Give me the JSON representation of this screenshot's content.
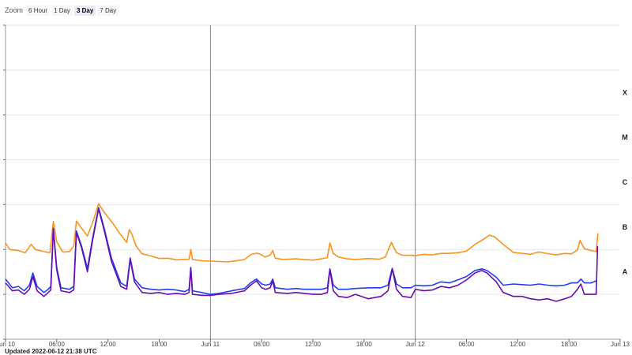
{
  "zoom": {
    "label": "Zoom",
    "buttons": [
      "6 Hour",
      "1 Day",
      "3 Day",
      "7 Day"
    ],
    "selected": "3 Day"
  },
  "updated_text": "Updated 2022-06-12 21:38 UTC",
  "chart_data": {
    "type": "line",
    "x_unit": "hours since Jun 10 00:00 UTC",
    "x_range": [
      0,
      72
    ],
    "x_ticks": [
      {
        "x": 0,
        "label": "Jun 10"
      },
      {
        "x": 6,
        "label": "06:00"
      },
      {
        "x": 12,
        "label": "12:00"
      },
      {
        "x": 18,
        "label": "18:00"
      },
      {
        "x": 24,
        "label": "Jun 11"
      },
      {
        "x": 30,
        "label": "06:00"
      },
      {
        "x": 36,
        "label": "12:00"
      },
      {
        "x": 42,
        "label": "18:00"
      },
      {
        "x": 48,
        "label": "Jun 12"
      },
      {
        "x": 54,
        "label": "06:00"
      },
      {
        "x": 60,
        "label": "12:00"
      },
      {
        "x": 66,
        "label": "18:00"
      },
      {
        "x": 72,
        "label": "Jun 13"
      }
    ],
    "y_scale": "log",
    "y_unit": "W/m²",
    "y_range": [
      1e-09,
      0.01
    ],
    "flare_classes": [
      {
        "label": "X",
        "value": 0.0001
      },
      {
        "label": "M",
        "value": 1e-05
      },
      {
        "label": "C",
        "value": 1e-06
      },
      {
        "label": "B",
        "value": 1e-07
      },
      {
        "label": "A",
        "value": 1e-08
      }
    ],
    "day_lines": [
      24,
      48
    ],
    "series": [
      {
        "color": "#f7941d",
        "points": [
          [
            0,
            1.4e-07
          ],
          [
            0.5,
            1e-07
          ],
          [
            1.5,
            9.5e-08
          ],
          [
            2.3,
            8.5e-08
          ],
          [
            3,
            1.3e-07
          ],
          [
            3.5,
            1e-07
          ],
          [
            4.5,
            9e-08
          ],
          [
            5.2,
            8.5e-08
          ],
          [
            5.6,
            4.2e-07
          ],
          [
            6,
            1.5e-07
          ],
          [
            6.7,
            8.8e-08
          ],
          [
            7.5,
            9e-08
          ],
          [
            8,
            1.2e-07
          ],
          [
            8.3,
            4.3e-07
          ],
          [
            8.8,
            3.2e-07
          ],
          [
            9.6,
            2e-07
          ],
          [
            10.2,
            4e-07
          ],
          [
            10.9,
            1.05e-06
          ],
          [
            11.5,
            7e-07
          ],
          [
            12.5,
            4e-07
          ],
          [
            13.3,
            2.4e-07
          ],
          [
            14.2,
            1.45e-07
          ],
          [
            14.5,
            2.8e-07
          ],
          [
            14.8,
            2.2e-07
          ],
          [
            15.3,
            1.2e-07
          ],
          [
            16,
            8e-08
          ],
          [
            17,
            7.2e-08
          ],
          [
            18,
            6.3e-08
          ],
          [
            19,
            6.4e-08
          ],
          [
            20,
            5.9e-08
          ],
          [
            21.5,
            6.1e-08
          ],
          [
            21.7,
            1e-07
          ],
          [
            21.9,
            6e-08
          ],
          [
            23,
            5.6e-08
          ],
          [
            24,
            5.5e-08
          ],
          [
            25,
            5.4e-08
          ],
          [
            26,
            5.3e-08
          ],
          [
            27,
            5.6e-08
          ],
          [
            28,
            6e-08
          ],
          [
            28.8,
            7.8e-08
          ],
          [
            29.5,
            8.3e-08
          ],
          [
            30,
            7.6e-08
          ],
          [
            30.4,
            6.8e-08
          ],
          [
            31,
            7.5e-08
          ],
          [
            31.3,
            9.5e-08
          ],
          [
            31.6,
            6.4e-08
          ],
          [
            32.5,
            6e-08
          ],
          [
            34,
            6.2e-08
          ],
          [
            35,
            6e-08
          ],
          [
            36,
            5.8e-08
          ],
          [
            37,
            6.2e-08
          ],
          [
            37.7,
            6.6e-08
          ],
          [
            38,
            1.4e-07
          ],
          [
            38.4,
            8.2e-08
          ],
          [
            39,
            6.8e-08
          ],
          [
            40,
            6.2e-08
          ],
          [
            41,
            6e-08
          ],
          [
            42.5,
            6.3e-08
          ],
          [
            43.8,
            6.1e-08
          ],
          [
            44.5,
            6.8e-08
          ],
          [
            45.2,
            1.45e-07
          ],
          [
            45.8,
            8.5e-08
          ],
          [
            46.5,
            7.4e-08
          ],
          [
            47.5,
            7.5e-08
          ],
          [
            48,
            7.3e-08
          ],
          [
            49,
            7.8e-08
          ],
          [
            50,
            7.6e-08
          ],
          [
            51,
            8.2e-08
          ],
          [
            52,
            8.2e-08
          ],
          [
            53,
            8.5e-08
          ],
          [
            54,
            9.2e-08
          ],
          [
            55,
            1.3e-07
          ],
          [
            56,
            1.7e-07
          ],
          [
            56.7,
            2.1e-07
          ],
          [
            57.3,
            1.9e-07
          ],
          [
            58.3,
            1.3e-07
          ],
          [
            59.5,
            8.6e-08
          ],
          [
            60.5,
            8.2e-08
          ],
          [
            61.5,
            7.8e-08
          ],
          [
            62.5,
            8.8e-08
          ],
          [
            63.5,
            8.1e-08
          ],
          [
            64.5,
            7.6e-08
          ],
          [
            65.5,
            8.2e-08
          ],
          [
            66.3,
            8e-08
          ],
          [
            67,
            9.8e-08
          ],
          [
            67.3,
            1.6e-07
          ],
          [
            67.8,
            1.05e-07
          ],
          [
            68.6,
            9.5e-08
          ],
          [
            69.2,
            9e-08
          ],
          [
            69.4,
            2.3e-07
          ]
        ]
      },
      {
        "color": "#1f3ff0",
        "points": [
          [
            0,
            2.2e-08
          ],
          [
            0.8,
            1.4e-08
          ],
          [
            1.5,
            1.5e-08
          ],
          [
            2.2,
            1.2e-08
          ],
          [
            2.8,
            1.6e-08
          ],
          [
            3.2,
            3e-08
          ],
          [
            3.7,
            1.5e-08
          ],
          [
            4.5,
            1.1e-08
          ],
          [
            5,
            1.3e-08
          ],
          [
            5.3,
            1.5e-08
          ],
          [
            5.6,
            3e-07
          ],
          [
            6,
            4e-08
          ],
          [
            6.5,
            1.4e-08
          ],
          [
            7.5,
            1.3e-08
          ],
          [
            8,
            1.5e-08
          ],
          [
            8.3,
            2.6e-07
          ],
          [
            8.9,
            1.2e-07
          ],
          [
            9.6,
            3.8e-08
          ],
          [
            10.2,
            1.8e-07
          ],
          [
            10.9,
            8.6e-07
          ],
          [
            11.6,
            2.8e-07
          ],
          [
            12.4,
            6.5e-08
          ],
          [
            13.5,
            1.8e-08
          ],
          [
            14.2,
            1.5e-08
          ],
          [
            14.6,
            6.5e-08
          ],
          [
            15.1,
            2.2e-08
          ],
          [
            16,
            1.4e-08
          ],
          [
            17,
            1.3e-08
          ],
          [
            18,
            1.25e-08
          ],
          [
            19,
            1.3e-08
          ],
          [
            20,
            1.25e-08
          ],
          [
            21,
            1.15e-08
          ],
          [
            21.5,
            1.3e-08
          ],
          [
            21.7,
            4e-08
          ],
          [
            21.9,
            1.2e-08
          ],
          [
            23,
            1.1e-08
          ],
          [
            24,
            1e-08
          ],
          [
            25,
            1.05e-08
          ],
          [
            26.5,
            1.2e-08
          ],
          [
            28,
            1.35e-08
          ],
          [
            28.7,
            1.8e-08
          ],
          [
            29.4,
            2.2e-08
          ],
          [
            30,
            1.7e-08
          ],
          [
            30.5,
            1.6e-08
          ],
          [
            31,
            1.7e-08
          ],
          [
            31.3,
            2.2e-08
          ],
          [
            31.6,
            1.4e-08
          ],
          [
            33,
            1.3e-08
          ],
          [
            34,
            1.35e-08
          ],
          [
            35,
            1.3e-08
          ],
          [
            36,
            1.3e-08
          ],
          [
            37,
            1.3e-08
          ],
          [
            37.7,
            1.4e-08
          ],
          [
            38,
            3.7e-08
          ],
          [
            38.4,
            1.6e-08
          ],
          [
            39,
            1.3e-08
          ],
          [
            40,
            1.3e-08
          ],
          [
            41,
            1.35e-08
          ],
          [
            42.5,
            1.4e-08
          ],
          [
            44,
            1.4e-08
          ],
          [
            44.8,
            1.6e-08
          ],
          [
            45.3,
            3.8e-08
          ],
          [
            45.8,
            1.7e-08
          ],
          [
            46.5,
            1.4e-08
          ],
          [
            47.5,
            1.4e-08
          ],
          [
            48,
            1.6e-08
          ],
          [
            49,
            1.55e-08
          ],
          [
            50,
            1.6e-08
          ],
          [
            51,
            1.9e-08
          ],
          [
            52,
            1.8e-08
          ],
          [
            53,
            2.1e-08
          ],
          [
            54,
            2.5e-08
          ],
          [
            55,
            3.4e-08
          ],
          [
            55.8,
            3.7e-08
          ],
          [
            56.4,
            3.4e-08
          ],
          [
            57.5,
            2.4e-08
          ],
          [
            58.3,
            1.6e-08
          ],
          [
            59.5,
            1.7e-08
          ],
          [
            60.5,
            1.65e-08
          ],
          [
            61.5,
            1.6e-08
          ],
          [
            62.5,
            1.7e-08
          ],
          [
            63.5,
            1.6e-08
          ],
          [
            64.5,
            1.55e-08
          ],
          [
            65.5,
            1.6e-08
          ],
          [
            66.3,
            1.8e-08
          ],
          [
            67,
            1.8e-08
          ],
          [
            67.4,
            2.2e-08
          ],
          [
            67.8,
            1.8e-08
          ],
          [
            68.6,
            1.8e-08
          ],
          [
            69.2,
            2e-08
          ]
        ]
      },
      {
        "color": "#6a0dad",
        "points": [
          [
            0,
            1.8e-08
          ],
          [
            0.8,
            1.2e-08
          ],
          [
            1.5,
            1.25e-08
          ],
          [
            2.2,
            1e-08
          ],
          [
            2.8,
            1.3e-08
          ],
          [
            3.2,
            2.5e-08
          ],
          [
            3.7,
            1.2e-08
          ],
          [
            4.5,
            9e-09
          ],
          [
            5,
            1.1e-08
          ],
          [
            5.3,
            1.25e-08
          ],
          [
            5.6,
            2.8e-07
          ],
          [
            6,
            3.5e-08
          ],
          [
            6.5,
            1.2e-08
          ],
          [
            7.5,
            1.1e-08
          ],
          [
            8,
            1.25e-08
          ],
          [
            8.3,
            2.4e-07
          ],
          [
            8.9,
            1.1e-07
          ],
          [
            9.6,
            3.2e-08
          ],
          [
            10.2,
            1.6e-07
          ],
          [
            10.9,
            8e-07
          ],
          [
            11.6,
            2.5e-07
          ],
          [
            12.4,
            5.5e-08
          ],
          [
            13.5,
            1.5e-08
          ],
          [
            14.2,
            1.3e-08
          ],
          [
            14.6,
            6e-08
          ],
          [
            15.1,
            1.9e-08
          ],
          [
            16,
            1.1e-08
          ],
          [
            17,
            1.05e-08
          ],
          [
            18,
            1.1e-08
          ],
          [
            19,
            1e-08
          ],
          [
            20,
            1.05e-08
          ],
          [
            21,
            1e-08
          ],
          [
            21.5,
            1.1e-08
          ],
          [
            21.7,
            3.8e-08
          ],
          [
            21.9,
            1e-08
          ],
          [
            23,
            9.5e-09
          ],
          [
            24,
            9.5e-09
          ],
          [
            25,
            1e-08
          ],
          [
            26.5,
            1.05e-08
          ],
          [
            28,
            1.2e-08
          ],
          [
            28.7,
            1.6e-08
          ],
          [
            29.4,
            2e-08
          ],
          [
            30,
            1.4e-08
          ],
          [
            30.5,
            1.3e-08
          ],
          [
            31,
            1.4e-08
          ],
          [
            31.3,
            2e-08
          ],
          [
            31.6,
            1.1e-08
          ],
          [
            33,
            1.05e-08
          ],
          [
            34,
            1.1e-08
          ],
          [
            35,
            1.05e-08
          ],
          [
            36,
            1e-08
          ],
          [
            37,
            1e-08
          ],
          [
            37.7,
            1.1e-08
          ],
          [
            38,
            3.6e-08
          ],
          [
            38.4,
            1.2e-08
          ],
          [
            39,
            9e-09
          ],
          [
            40,
            8.5e-09
          ],
          [
            41,
            1e-08
          ],
          [
            42.5,
            8e-09
          ],
          [
            44,
            9e-09
          ],
          [
            44.8,
            1.2e-08
          ],
          [
            45.3,
            3.7e-08
          ],
          [
            45.8,
            1.3e-08
          ],
          [
            46.5,
            9e-09
          ],
          [
            47.5,
            8.5e-09
          ],
          [
            48,
            1.3e-08
          ],
          [
            49,
            1.2e-08
          ],
          [
            50,
            1.25e-08
          ],
          [
            51,
            1.5e-08
          ],
          [
            52,
            1.4e-08
          ],
          [
            53,
            1.6e-08
          ],
          [
            54,
            2.1e-08
          ],
          [
            55,
            3e-08
          ],
          [
            55.8,
            3.4e-08
          ],
          [
            56.4,
            3e-08
          ],
          [
            57.5,
            1.9e-08
          ],
          [
            58.3,
            1.1e-08
          ],
          [
            59.5,
            9e-09
          ],
          [
            60.5,
            9e-09
          ],
          [
            61.5,
            8e-09
          ],
          [
            62.5,
            7.5e-09
          ],
          [
            63.5,
            8e-09
          ],
          [
            64.5,
            7e-09
          ],
          [
            65.5,
            8e-09
          ],
          [
            66.3,
            9e-09
          ],
          [
            67,
            1.3e-08
          ],
          [
            67.4,
            1.7e-08
          ],
          [
            67.8,
            1e-08
          ],
          [
            68.6,
            1e-08
          ],
          [
            69.2,
            1e-08
          ],
          [
            69.35,
            1.2e-07
          ]
        ]
      }
    ]
  }
}
